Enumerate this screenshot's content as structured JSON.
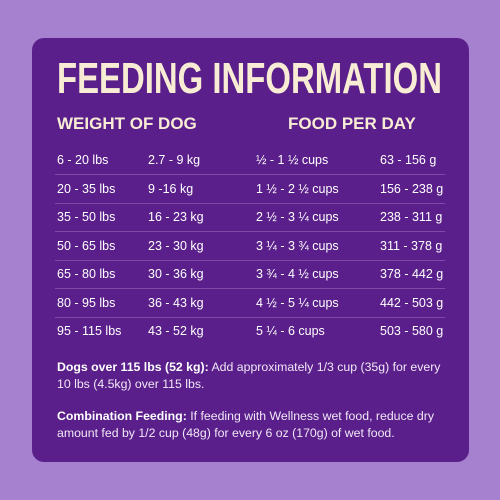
{
  "title": "FEEDING INFORMATION",
  "headers": [
    "WEIGHT OF DOG",
    "FOOD PER DAY"
  ],
  "table": {
    "rows": [
      [
        "6 - 20 lbs",
        "2.7 - 9 kg",
        "½ - 1 ½ cups",
        "63 - 156 g"
      ],
      [
        "20 - 35 lbs",
        "9 -16 kg",
        "1 ½ - 2 ½ cups",
        "156 - 238 g"
      ],
      [
        "35 - 50 lbs",
        "16 - 23 kg",
        "2 ½ - 3 ¼ cups",
        "238 - 311 g"
      ],
      [
        "50 - 65 lbs",
        "23 - 30 kg",
        "3 ¼ - 3 ¾ cups",
        "311 - 378 g"
      ],
      [
        "65 - 80 lbs",
        "30 - 36 kg",
        "3 ¾ - 4 ½ cups",
        "378 - 442 g"
      ],
      [
        "80 - 95 lbs",
        "36 - 43 kg",
        "4 ½ - 5 ¼ cups",
        "442 - 503 g"
      ],
      [
        "95 - 115 lbs",
        "43 - 52 kg",
        "5 ¼ - 6 cups",
        "503 - 580 g"
      ]
    ]
  },
  "notes": [
    {
      "label": "Dogs over 115 lbs (52 kg):",
      "text": "Add approximately 1/3 cup (35g) for every 10 lbs (4.5kg) over 115 lbs."
    },
    {
      "label": "Combination Feeding:",
      "text": "If feeding with Wellness wet food, reduce dry amount fed by 1/2 cup (48g) for every 6 oz (170g) of wet food."
    }
  ]
}
